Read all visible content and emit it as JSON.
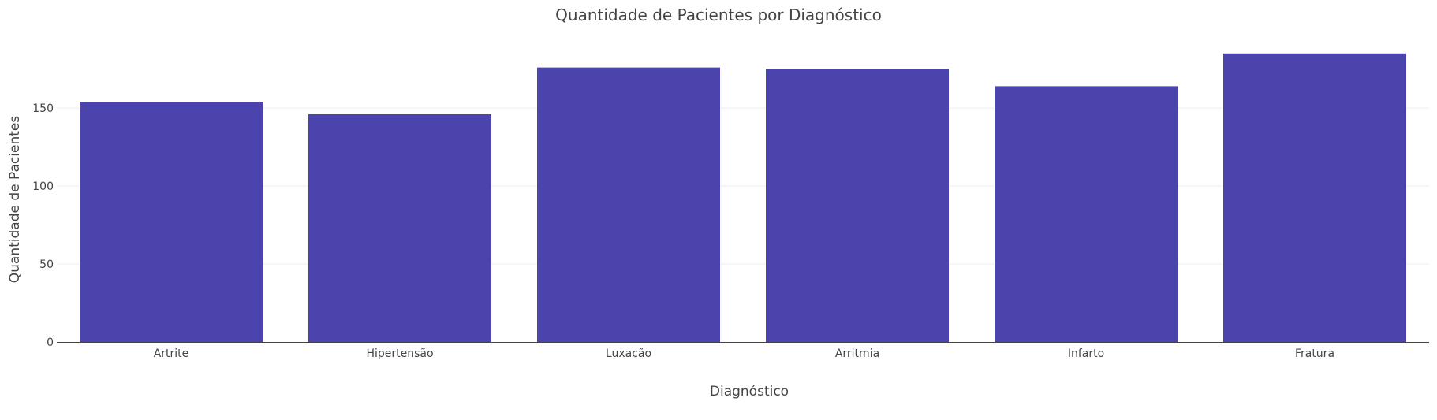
{
  "chart_data": {
    "type": "bar",
    "title": "Quantidade de Pacientes por Diagnóstico",
    "xlabel": "Diagnóstico",
    "ylabel": "Quantidade de Pacientes",
    "categories": [
      "Artrite",
      "Hipertensão",
      "Luxação",
      "Arritmia",
      "Infarto",
      "Fratura"
    ],
    "values": [
      154,
      146,
      176,
      175,
      164,
      185
    ],
    "ylim": [
      0,
      194
    ],
    "yticks": [
      0,
      50,
      100,
      150
    ],
    "grid": true,
    "bar_color": "#3730a3",
    "bar_opacity": 0.9
  }
}
